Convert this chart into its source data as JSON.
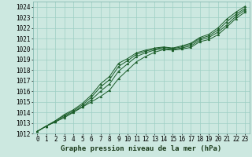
{
  "title": "Graphe pression niveau de la mer (hPa)",
  "bg_color": "#cce8e0",
  "grid_color": "#9ecfc4",
  "line_color": "#1a5c28",
  "marker_color": "#1a5c28",
  "xlim": [
    -0.5,
    23.5
  ],
  "ylim": [
    1012,
    1024.5
  ],
  "xticks": [
    0,
    1,
    2,
    3,
    4,
    5,
    6,
    7,
    8,
    9,
    10,
    11,
    12,
    13,
    14,
    15,
    16,
    17,
    18,
    19,
    20,
    21,
    22,
    23
  ],
  "yticks": [
    1012,
    1013,
    1014,
    1015,
    1016,
    1017,
    1018,
    1019,
    1020,
    1021,
    1022,
    1023,
    1024
  ],
  "series": {
    "line1": [
      1012.2,
      1012.7,
      1013.1,
      1013.5,
      1014.0,
      1014.5,
      1015.0,
      1015.5,
      1016.1,
      1017.2,
      1018.0,
      1018.8,
      1019.3,
      1019.7,
      1019.95,
      1019.9,
      1020.0,
      1020.15,
      1020.7,
      1020.9,
      1021.35,
      1022.1,
      1022.9,
      1023.5
    ],
    "line2": [
      1012.2,
      1012.7,
      1013.1,
      1013.6,
      1014.05,
      1014.55,
      1015.2,
      1016.0,
      1016.7,
      1017.9,
      1018.6,
      1019.3,
      1019.65,
      1019.9,
      1020.05,
      1019.95,
      1020.1,
      1020.3,
      1020.85,
      1021.1,
      1021.6,
      1022.3,
      1023.1,
      1023.7
    ],
    "line3": [
      1012.2,
      1012.7,
      1013.2,
      1013.7,
      1014.15,
      1014.7,
      1015.45,
      1016.4,
      1017.1,
      1018.35,
      1018.9,
      1019.5,
      1019.8,
      1020.0,
      1020.15,
      1020.05,
      1020.2,
      1020.45,
      1021.0,
      1021.25,
      1021.8,
      1022.6,
      1023.3,
      1023.85
    ],
    "line4": [
      1012.2,
      1012.7,
      1013.2,
      1013.8,
      1014.25,
      1014.85,
      1015.65,
      1016.7,
      1017.4,
      1018.65,
      1019.1,
      1019.65,
      1019.9,
      1020.1,
      1020.2,
      1020.1,
      1020.3,
      1020.55,
      1021.1,
      1021.4,
      1022.0,
      1022.85,
      1023.5,
      1024.05
    ]
  },
  "fontsize_label": 6.5,
  "fontsize_tick": 5.5,
  "linewidth": 0.7,
  "markersize": 2.0
}
